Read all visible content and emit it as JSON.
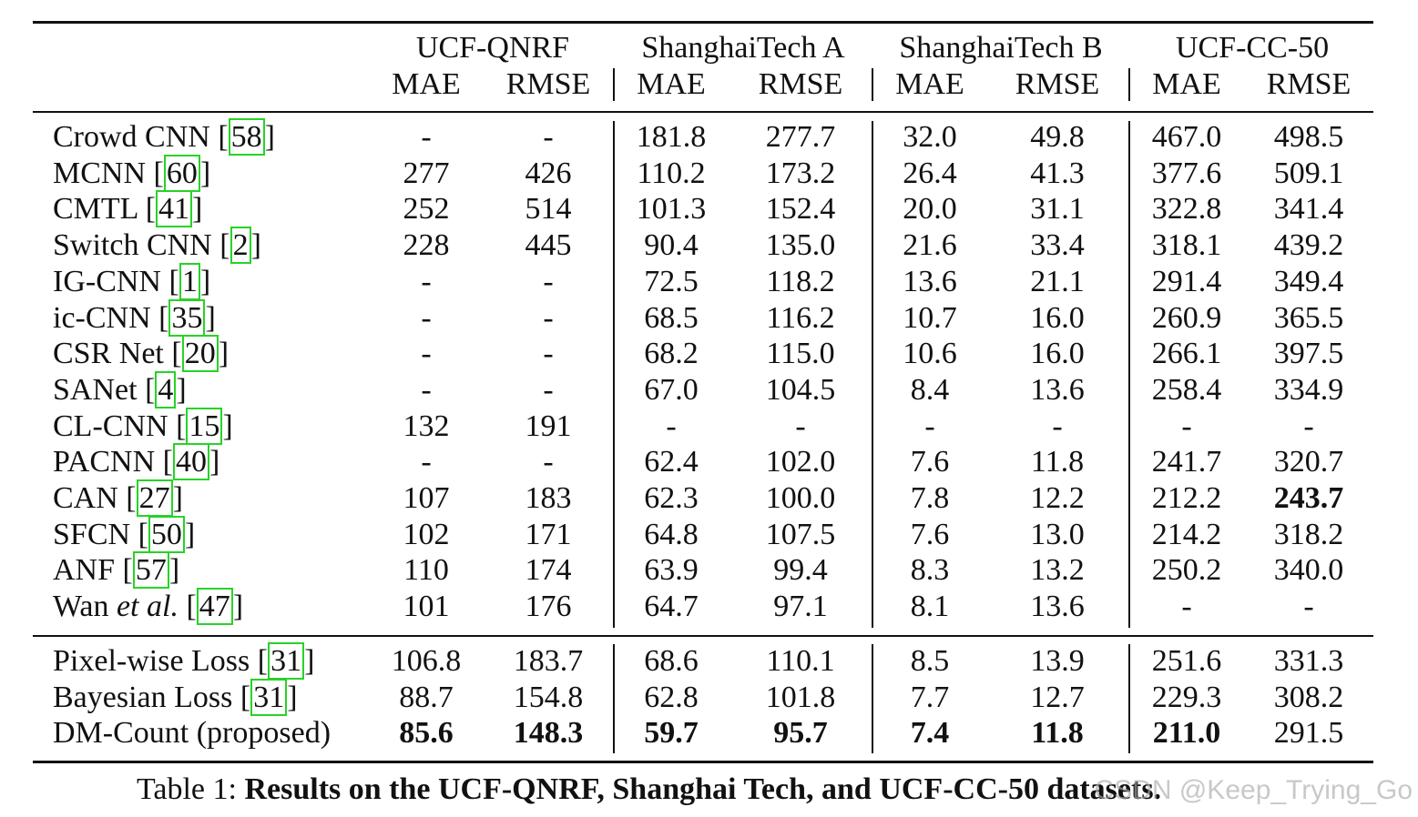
{
  "datasets": [
    "UCF-QNRF",
    "ShanghaiTech A",
    "ShanghaiTech B",
    "UCF-CC-50"
  ],
  "metrics": [
    "MAE",
    "RMSE"
  ],
  "group1": [
    {
      "name": "Crowd CNN",
      "ref": "58",
      "values": [
        "-",
        "-",
        "181.8",
        "277.7",
        "32.0",
        "49.8",
        "467.0",
        "498.5"
      ],
      "bold": []
    },
    {
      "name": "MCNN",
      "ref": "60",
      "values": [
        "277",
        "426",
        "110.2",
        "173.2",
        "26.4",
        "41.3",
        "377.6",
        "509.1"
      ],
      "bold": []
    },
    {
      "name": "CMTL",
      "ref": "41",
      "values": [
        "252",
        "514",
        "101.3",
        "152.4",
        "20.0",
        "31.1",
        "322.8",
        "341.4"
      ],
      "bold": []
    },
    {
      "name": "Switch CNN",
      "ref": "2",
      "values": [
        "228",
        "445",
        "90.4",
        "135.0",
        "21.6",
        "33.4",
        "318.1",
        "439.2"
      ],
      "bold": []
    },
    {
      "name": "IG-CNN",
      "ref": "1",
      "values": [
        "-",
        "-",
        "72.5",
        "118.2",
        "13.6",
        "21.1",
        "291.4",
        "349.4"
      ],
      "bold": []
    },
    {
      "name": "ic-CNN",
      "ref": "35",
      "values": [
        "-",
        "-",
        "68.5",
        "116.2",
        "10.7",
        "16.0",
        "260.9",
        "365.5"
      ],
      "bold": []
    },
    {
      "name": "CSR Net",
      "ref": "20",
      "values": [
        "-",
        "-",
        "68.2",
        "115.0",
        "10.6",
        "16.0",
        "266.1",
        "397.5"
      ],
      "bold": []
    },
    {
      "name": "SANet",
      "ref": "4",
      "values": [
        "-",
        "-",
        "67.0",
        "104.5",
        "8.4",
        "13.6",
        "258.4",
        "334.9"
      ],
      "bold": []
    },
    {
      "name": "CL-CNN",
      "ref": "15",
      "values": [
        "132",
        "191",
        "-",
        "-",
        "-",
        "-",
        "-",
        "-"
      ],
      "bold": []
    },
    {
      "name": "PACNN",
      "ref": "40",
      "values": [
        "-",
        "-",
        "62.4",
        "102.0",
        "7.6",
        "11.8",
        "241.7",
        "320.7"
      ],
      "bold": []
    },
    {
      "name": "CAN",
      "ref": "27",
      "values": [
        "107",
        "183",
        "62.3",
        "100.0",
        "7.8",
        "12.2",
        "212.2",
        "243.7"
      ],
      "bold": [
        7
      ]
    },
    {
      "name": "SFCN",
      "ref": "50",
      "values": [
        "102",
        "171",
        "64.8",
        "107.5",
        "7.6",
        "13.0",
        "214.2",
        "318.2"
      ],
      "bold": []
    },
    {
      "name": "ANF",
      "ref": "57",
      "values": [
        "110",
        "174",
        "63.9",
        "99.4",
        "8.3",
        "13.2",
        "250.2",
        "340.0"
      ],
      "bold": []
    },
    {
      "name": "Wan",
      "name_italic": "et al.",
      "ref": "47",
      "values": [
        "101",
        "176",
        "64.7",
        "97.1",
        "8.1",
        "13.6",
        "-",
        "-"
      ],
      "bold": []
    }
  ],
  "group2": [
    {
      "name": "Pixel-wise Loss",
      "ref": "31",
      "values": [
        "106.8",
        "183.7",
        "68.6",
        "110.1",
        "8.5",
        "13.9",
        "251.6",
        "331.3"
      ],
      "bold": []
    },
    {
      "name": "Bayesian Loss",
      "ref": "31",
      "values": [
        "88.7",
        "154.8",
        "62.8",
        "101.8",
        "7.7",
        "12.7",
        "229.3",
        "308.2"
      ],
      "bold": []
    },
    {
      "name": "DM-Count (proposed)",
      "ref": "",
      "values": [
        "85.6",
        "148.3",
        "59.7",
        "95.7",
        "7.4",
        "11.8",
        "211.0",
        "291.5"
      ],
      "bold": [
        0,
        1,
        2,
        3,
        4,
        5,
        6
      ]
    }
  ],
  "caption": {
    "label": "Table 1:",
    "text": "Results on the UCF-QNRF, Shanghai Tech, and UCF-CC-50 datasets."
  },
  "watermark": "CSDN @Keep_Trying_Go"
}
